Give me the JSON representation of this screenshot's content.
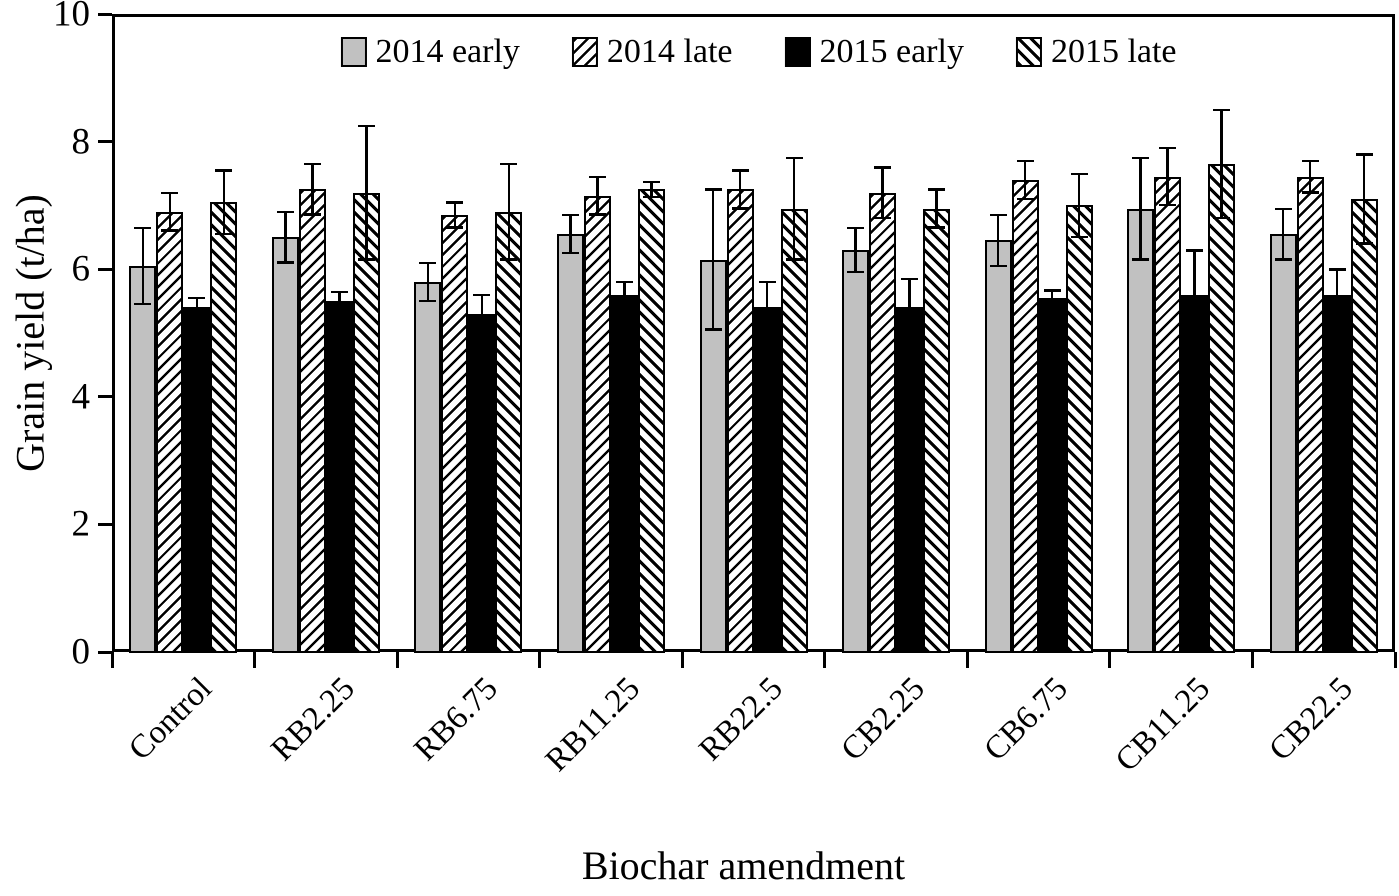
{
  "figure": {
    "background": "#ffffff",
    "kind": "grouped-bar-chart-with-error-bars"
  },
  "chart_data": {
    "type": "bar",
    "title": "",
    "xlabel": "Biochar amendment",
    "ylabel": "Grain yield (t/ha)",
    "ylim": [
      0,
      10
    ],
    "y_ticks": [
      "0",
      "2",
      "4",
      "6",
      "8",
      "10"
    ],
    "grid": false,
    "error_bars": true,
    "legend_position": "top-center-inside",
    "plot_border": "full-box",
    "categories": [
      "Control",
      "RB2.25",
      "RB6.75",
      "RB11.25",
      "RB22.5",
      "CB2.25",
      "CB6.75",
      "CB11.25",
      "CB22.5"
    ],
    "series": [
      {
        "name": "2014 early",
        "style": "solid-gray",
        "fill": "#c1c1c1",
        "error_display": "both",
        "values": [
          6.05,
          6.5,
          5.8,
          6.55,
          6.15,
          6.3,
          6.45,
          6.95,
          6.55
        ],
        "errors": [
          0.6,
          0.4,
          0.3,
          0.3,
          1.1,
          0.35,
          0.4,
          0.8,
          0.4
        ]
      },
      {
        "name": "2014 late",
        "style": "hatch-forward-slash",
        "fill": "#ffffff",
        "error_display": "both",
        "values": [
          6.9,
          7.25,
          6.85,
          7.15,
          7.25,
          7.2,
          7.4,
          7.45,
          7.45
        ],
        "errors": [
          0.3,
          0.4,
          0.2,
          0.3,
          0.3,
          0.4,
          0.3,
          0.45,
          0.25
        ]
      },
      {
        "name": "2015 early",
        "style": "solid-black",
        "fill": "#000000",
        "error_display": "upper-only",
        "values": [
          5.4,
          5.5,
          5.3,
          5.6,
          5.4,
          5.4,
          5.55,
          5.6,
          5.6
        ],
        "errors": [
          0.15,
          0.15,
          0.3,
          0.2,
          0.4,
          0.45,
          0.12,
          0.7,
          0.4
        ]
      },
      {
        "name": "2015 late",
        "style": "hatch-back-slash",
        "fill": "#ffffff",
        "error_display": "both",
        "values": [
          7.05,
          7.2,
          6.9,
          7.25,
          6.95,
          6.95,
          7.0,
          7.65,
          7.1
        ],
        "errors": [
          0.5,
          1.05,
          0.75,
          0.12,
          0.8,
          0.3,
          0.5,
          0.85,
          0.7
        ]
      }
    ]
  },
  "colors": {
    "axis": "#000000",
    "bar_gray": "#c1c1c1",
    "bar_black": "#000000",
    "hatch_line": "#000000",
    "background": "#ffffff"
  }
}
